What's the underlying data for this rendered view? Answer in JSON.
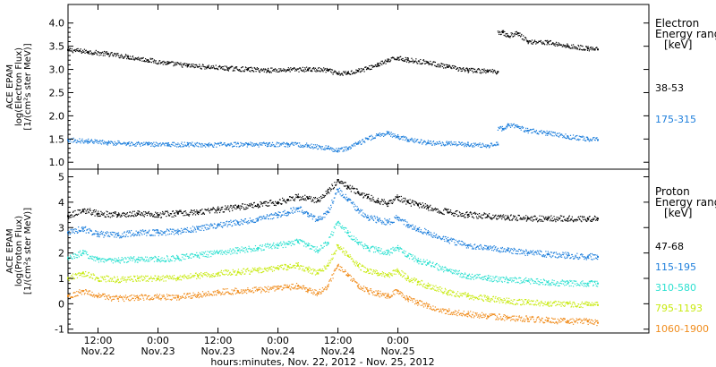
{
  "chart_data": [
    {
      "type": "scatter",
      "panel": "electron",
      "ylabel_lines": [
        "ACE EPAM",
        "log(Electron Flux)",
        "[1/(cm²s ster MeV)]"
      ],
      "ylim": [
        0.85,
        4.4
      ],
      "yticks": [
        "1.0",
        "1.5",
        "2.0",
        "2.5",
        "3.0",
        "3.5",
        "4.0"
      ],
      "legend_title_lines": [
        "Electron",
        "Energy ranges",
        "[keV]"
      ],
      "series": [
        {
          "name": "38-53",
          "color": "#000000",
          "points": [
            [
              0,
              3.42
            ],
            [
              4,
              3.38
            ],
            [
              8,
              3.33
            ],
            [
              12,
              3.27
            ],
            [
              16,
              3.2
            ],
            [
              20,
              3.13
            ],
            [
              24,
              3.08
            ],
            [
              28,
              3.05
            ],
            [
              32,
              3.02
            ],
            [
              36,
              3.0
            ],
            [
              40,
              2.98
            ],
            [
              44,
              2.99
            ],
            [
              48,
              3.0
            ],
            [
              52,
              2.98
            ],
            [
              54,
              2.9
            ],
            [
              56,
              2.92
            ],
            [
              58,
              2.97
            ],
            [
              60,
              3.02
            ],
            [
              62,
              3.1
            ],
            [
              64,
              3.18
            ],
            [
              66,
              3.25
            ],
            [
              68,
              3.2
            ],
            [
              72,
              3.15
            ],
            [
              76,
              3.05
            ],
            [
              80,
              2.98
            ],
            [
              84,
              2.96
            ],
            [
              86,
              2.95
            ],
            [
              87,
              3.8
            ],
            [
              88,
              3.72
            ],
            [
              90,
              3.78
            ],
            [
              92,
              3.6
            ],
            [
              96,
              3.58
            ],
            [
              100,
              3.5
            ],
            [
              104,
              3.45
            ],
            [
              106,
              3.43
            ]
          ]
        },
        {
          "name": "175-315",
          "color": "#1e7fdc",
          "points": [
            [
              0,
              1.48
            ],
            [
              4,
              1.45
            ],
            [
              8,
              1.42
            ],
            [
              12,
              1.4
            ],
            [
              16,
              1.38
            ],
            [
              20,
              1.38
            ],
            [
              24,
              1.38
            ],
            [
              28,
              1.37
            ],
            [
              32,
              1.38
            ],
            [
              36,
              1.38
            ],
            [
              40,
              1.38
            ],
            [
              44,
              1.38
            ],
            [
              48,
              1.36
            ],
            [
              52,
              1.3
            ],
            [
              54,
              1.25
            ],
            [
              56,
              1.3
            ],
            [
              58,
              1.4
            ],
            [
              60,
              1.5
            ],
            [
              62,
              1.58
            ],
            [
              64,
              1.62
            ],
            [
              66,
              1.55
            ],
            [
              68,
              1.48
            ],
            [
              72,
              1.42
            ],
            [
              76,
              1.4
            ],
            [
              80,
              1.38
            ],
            [
              84,
              1.36
            ],
            [
              86,
              1.38
            ],
            [
              87,
              1.72
            ],
            [
              88,
              1.8
            ],
            [
              90,
              1.76
            ],
            [
              92,
              1.68
            ],
            [
              96,
              1.62
            ],
            [
              100,
              1.55
            ],
            [
              104,
              1.5
            ],
            [
              106,
              1.48
            ]
          ]
        }
      ]
    },
    {
      "type": "scatter",
      "panel": "proton",
      "ylabel_lines": [
        "ACE EPAM",
        "log(Proton Flux)",
        "[1/(cm²s ster MeV)]"
      ],
      "ylim": [
        -1.15,
        5.3
      ],
      "yticks": [
        "-1",
        "0",
        "1",
        "2",
        "3",
        "4",
        "5"
      ],
      "legend_title_lines": [
        "Proton",
        "Energy ranges",
        "[keV]"
      ],
      "xlabel": "hours:minutes, Nov. 22, 2012 - Nov. 25, 2012",
      "xtick_labels": [
        [
          "12:00",
          "Nov.22"
        ],
        [
          "0:00",
          "Nov.23"
        ],
        [
          "12:00",
          "Nov.23"
        ],
        [
          "0:00",
          "Nov.24"
        ],
        [
          "12:00",
          "Nov.24"
        ],
        [
          "0:00",
          "Nov.25"
        ]
      ],
      "series": [
        {
          "name": "47-68",
          "color": "#000000",
          "points": [
            [
              0,
              3.45
            ],
            [
              3,
              3.7
            ],
            [
              6,
              3.55
            ],
            [
              10,
              3.5
            ],
            [
              14,
              3.55
            ],
            [
              18,
              3.5
            ],
            [
              22,
              3.55
            ],
            [
              26,
              3.6
            ],
            [
              30,
              3.7
            ],
            [
              34,
              3.8
            ],
            [
              38,
              3.9
            ],
            [
              42,
              4.0
            ],
            [
              44,
              4.1
            ],
            [
              46,
              4.2
            ],
            [
              48,
              4.15
            ],
            [
              50,
              4.05
            ],
            [
              52,
              4.4
            ],
            [
              54,
              4.85
            ],
            [
              56,
              4.6
            ],
            [
              58,
              4.4
            ],
            [
              60,
              4.2
            ],
            [
              62,
              4.05
            ],
            [
              64,
              3.95
            ],
            [
              66,
              4.2
            ],
            [
              68,
              4.0
            ],
            [
              70,
              3.9
            ],
            [
              72,
              3.8
            ],
            [
              76,
              3.6
            ],
            [
              80,
              3.5
            ],
            [
              84,
              3.45
            ],
            [
              88,
              3.4
            ],
            [
              92,
              3.35
            ],
            [
              96,
              3.35
            ],
            [
              100,
              3.35
            ],
            [
              104,
              3.35
            ],
            [
              106,
              3.35
            ]
          ]
        },
        {
          "name": "115-195",
          "color": "#1e7fdc",
          "points": [
            [
              0,
              2.8
            ],
            [
              3,
              2.95
            ],
            [
              6,
              2.75
            ],
            [
              10,
              2.7
            ],
            [
              14,
              2.8
            ],
            [
              18,
              2.8
            ],
            [
              22,
              2.85
            ],
            [
              26,
              2.95
            ],
            [
              30,
              3.1
            ],
            [
              34,
              3.2
            ],
            [
              38,
              3.3
            ],
            [
              42,
              3.5
            ],
            [
              44,
              3.6
            ],
            [
              46,
              3.75
            ],
            [
              48,
              3.55
            ],
            [
              50,
              3.3
            ],
            [
              52,
              3.6
            ],
            [
              54,
              4.5
            ],
            [
              56,
              4.1
            ],
            [
              58,
              3.7
            ],
            [
              60,
              3.4
            ],
            [
              62,
              3.3
            ],
            [
              64,
              3.2
            ],
            [
              66,
              3.4
            ],
            [
              68,
              3.1
            ],
            [
              70,
              2.95
            ],
            [
              72,
              2.8
            ],
            [
              76,
              2.5
            ],
            [
              80,
              2.3
            ],
            [
              84,
              2.2
            ],
            [
              88,
              2.1
            ],
            [
              92,
              2.0
            ],
            [
              96,
              1.95
            ],
            [
              100,
              1.9
            ],
            [
              104,
              1.85
            ],
            [
              106,
              1.85
            ]
          ]
        },
        {
          "name": "310-580",
          "color": "#2ce0d0",
          "points": [
            [
              0,
              1.8
            ],
            [
              3,
              2.0
            ],
            [
              6,
              1.75
            ],
            [
              10,
              1.7
            ],
            [
              14,
              1.75
            ],
            [
              18,
              1.75
            ],
            [
              22,
              1.8
            ],
            [
              26,
              1.9
            ],
            [
              30,
              2.0
            ],
            [
              34,
              2.1
            ],
            [
              38,
              2.2
            ],
            [
              42,
              2.3
            ],
            [
              44,
              2.35
            ],
            [
              46,
              2.45
            ],
            [
              48,
              2.3
            ],
            [
              50,
              2.1
            ],
            [
              52,
              2.4
            ],
            [
              54,
              3.2
            ],
            [
              56,
              2.8
            ],
            [
              58,
              2.4
            ],
            [
              60,
              2.2
            ],
            [
              62,
              2.1
            ],
            [
              64,
              2.0
            ],
            [
              66,
              2.2
            ],
            [
              68,
              1.9
            ],
            [
              70,
              1.7
            ],
            [
              72,
              1.6
            ],
            [
              76,
              1.3
            ],
            [
              80,
              1.1
            ],
            [
              84,
              1.0
            ],
            [
              88,
              0.95
            ],
            [
              92,
              0.9
            ],
            [
              96,
              0.85
            ],
            [
              100,
              0.8
            ],
            [
              104,
              0.8
            ],
            [
              106,
              0.8
            ]
          ]
        },
        {
          "name": "795-1193",
          "color": "#c8ea10",
          "points": [
            [
              0,
              1.0
            ],
            [
              3,
              1.2
            ],
            [
              6,
              1.0
            ],
            [
              10,
              0.95
            ],
            [
              14,
              1.0
            ],
            [
              18,
              1.0
            ],
            [
              22,
              1.0
            ],
            [
              26,
              1.1
            ],
            [
              30,
              1.2
            ],
            [
              34,
              1.25
            ],
            [
              38,
              1.3
            ],
            [
              42,
              1.4
            ],
            [
              44,
              1.45
            ],
            [
              46,
              1.5
            ],
            [
              48,
              1.35
            ],
            [
              50,
              1.2
            ],
            [
              52,
              1.5
            ],
            [
              54,
              2.3
            ],
            [
              56,
              1.9
            ],
            [
              58,
              1.5
            ],
            [
              60,
              1.3
            ],
            [
              62,
              1.2
            ],
            [
              64,
              1.1
            ],
            [
              66,
              1.3
            ],
            [
              68,
              1.0
            ],
            [
              70,
              0.85
            ],
            [
              72,
              0.7
            ],
            [
              76,
              0.45
            ],
            [
              80,
              0.3
            ],
            [
              84,
              0.2
            ],
            [
              88,
              0.1
            ],
            [
              92,
              0.05
            ],
            [
              96,
              0.0
            ],
            [
              100,
              0.0
            ],
            [
              104,
              -0.05
            ],
            [
              106,
              -0.05
            ]
          ]
        },
        {
          "name": "1060-1900",
          "color": "#f08c1c",
          "points": [
            [
              0,
              0.3
            ],
            [
              3,
              0.5
            ],
            [
              6,
              0.3
            ],
            [
              10,
              0.2
            ],
            [
              14,
              0.25
            ],
            [
              18,
              0.25
            ],
            [
              22,
              0.25
            ],
            [
              26,
              0.35
            ],
            [
              30,
              0.45
            ],
            [
              34,
              0.5
            ],
            [
              38,
              0.55
            ],
            [
              42,
              0.6
            ],
            [
              44,
              0.65
            ],
            [
              46,
              0.7
            ],
            [
              48,
              0.55
            ],
            [
              50,
              0.4
            ],
            [
              52,
              0.7
            ],
            [
              54,
              1.5
            ],
            [
              56,
              1.1
            ],
            [
              58,
              0.7
            ],
            [
              60,
              0.5
            ],
            [
              62,
              0.4
            ],
            [
              64,
              0.3
            ],
            [
              66,
              0.5
            ],
            [
              68,
              0.2
            ],
            [
              70,
              0.05
            ],
            [
              72,
              -0.1
            ],
            [
              76,
              -0.3
            ],
            [
              80,
              -0.4
            ],
            [
              84,
              -0.5
            ],
            [
              88,
              -0.55
            ],
            [
              92,
              -0.6
            ],
            [
              96,
              -0.65
            ],
            [
              100,
              -0.7
            ],
            [
              104,
              -0.7
            ],
            [
              106,
              -0.75
            ]
          ]
        }
      ]
    }
  ]
}
